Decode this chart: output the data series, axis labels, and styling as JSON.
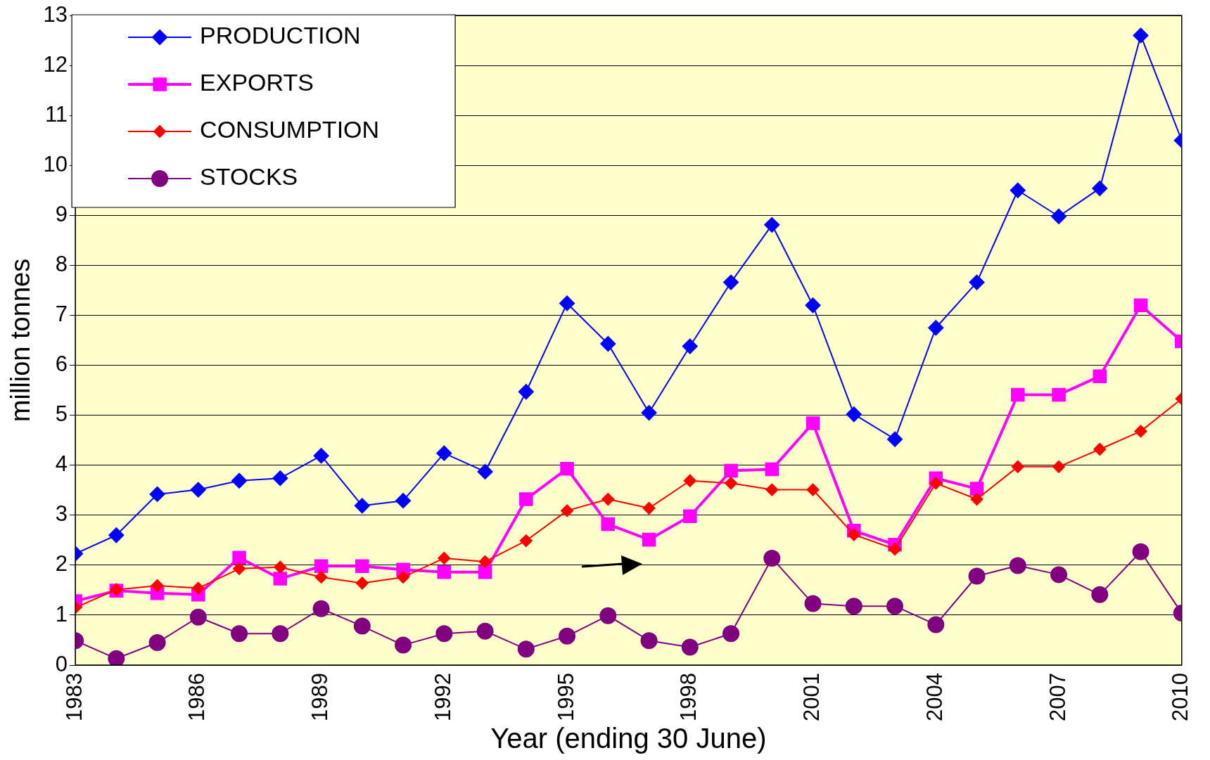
{
  "chart_data": {
    "type": "line",
    "xlabel": "Year (ending 30 June)",
    "ylabel": "million tonnes",
    "x": [
      1983,
      1984,
      1985,
      1986,
      1987,
      1988,
      1989,
      1990,
      1991,
      1992,
      1993,
      1994,
      1995,
      1996,
      1997,
      1998,
      1999,
      2000,
      2001,
      2002,
      2003,
      2004,
      2005,
      2006,
      2007,
      2008,
      2009,
      2010
    ],
    "xlim": [
      1983,
      2010
    ],
    "xticks": [
      1983,
      1986,
      1989,
      1992,
      1995,
      1998,
      2001,
      2004,
      2007,
      2010
    ],
    "ylim": [
      0,
      13
    ],
    "yticks": [
      0,
      1,
      2,
      3,
      4,
      5,
      6,
      7,
      8,
      9,
      10,
      11,
      12,
      13
    ],
    "grid": "y",
    "legend": "top left",
    "series": [
      {
        "name": "PRODUCTION",
        "color": "#0000ff",
        "marker": "diamond",
        "values": [
          2.23,
          2.6,
          3.42,
          3.51,
          3.69,
          3.74,
          4.19,
          3.19,
          3.29,
          4.24,
          3.87,
          5.47,
          7.24,
          6.43,
          5.05,
          6.38,
          7.66,
          8.81,
          7.2,
          5.02,
          4.52,
          6.75,
          7.66,
          9.5,
          8.98,
          9.54,
          12.6,
          10.5
        ]
      },
      {
        "name": "EXPORTS",
        "color": "#ff00ff",
        "marker": "square",
        "values": [
          1.28,
          1.49,
          1.44,
          1.41,
          2.15,
          1.73,
          1.98,
          1.98,
          1.91,
          1.86,
          1.86,
          3.32,
          3.93,
          2.82,
          2.51,
          2.98,
          3.89,
          3.92,
          4.84,
          2.69,
          2.41,
          3.74,
          3.53,
          5.41,
          5.41,
          5.78,
          7.2,
          6.48
        ]
      },
      {
        "name": "CONSUMPTION",
        "color": "#ff0000",
        "marker": "diamond",
        "values": [
          1.15,
          1.51,
          1.59,
          1.54,
          1.93,
          1.96,
          1.76,
          1.64,
          1.76,
          2.14,
          2.07,
          2.49,
          3.09,
          3.32,
          3.14,
          3.69,
          3.64,
          3.51,
          3.51,
          2.61,
          2.32,
          3.64,
          3.32,
          3.97,
          3.97,
          4.32,
          4.68,
          5.33
        ]
      },
      {
        "name": "STOCKS",
        "color": "#800080",
        "marker": "circle",
        "values": [
          0.49,
          0.13,
          0.45,
          0.96,
          0.63,
          0.63,
          1.13,
          0.78,
          0.4,
          0.63,
          0.68,
          0.32,
          0.58,
          0.99,
          0.49,
          0.36,
          0.63,
          2.14,
          1.23,
          1.18,
          1.18,
          0.81,
          1.78,
          1.99,
          1.81,
          1.41,
          2.27,
          1.04
        ]
      }
    ]
  }
}
